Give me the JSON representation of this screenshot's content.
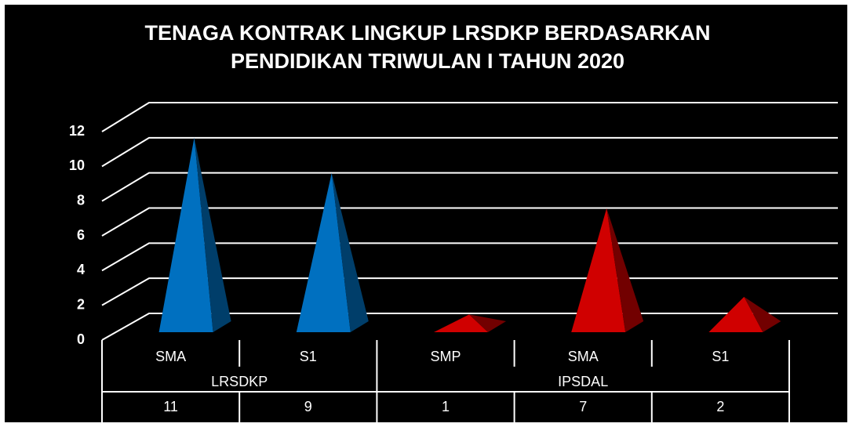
{
  "chart_data": {
    "type": "pyramid",
    "title": [
      "TENAGA KONTRAK LINGKUP LRSDKP BERDASARKAN",
      "PENDIDIKAN TRIWULAN I TAHUN  2020"
    ],
    "categories": [
      "SMA",
      "S1",
      "SMP",
      "SMA",
      "S1"
    ],
    "groups": [
      "LRSDKP",
      "LRSDKP",
      "IPSDAL",
      "IPSDAL",
      "IPSDAL"
    ],
    "values": [
      11,
      9,
      1,
      7,
      2
    ],
    "colors": [
      "#0070c0",
      "#0070c0",
      "#d00000",
      "#d00000",
      "#d00000"
    ],
    "ylim": [
      0,
      12
    ],
    "yticks": [
      0,
      2,
      4,
      6,
      8,
      10,
      12
    ],
    "grid": true
  }
}
